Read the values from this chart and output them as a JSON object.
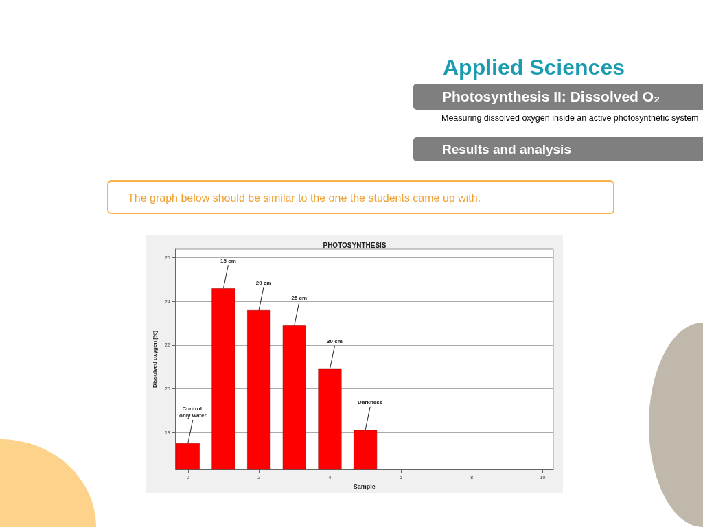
{
  "chart_data": {
    "type": "bar",
    "title": "PHOTOSYNTHESIS",
    "xlabel": "Sample",
    "ylabel": "Dissolved oxygen [%]",
    "x": [
      0,
      1,
      2,
      3,
      4,
      5
    ],
    "values": [
      17.5,
      24.6,
      23.6,
      22.9,
      20.9,
      18.1
    ],
    "color": "#ff0000",
    "xlim": [
      -0.35,
      10.3
    ],
    "xticks": [
      0,
      2,
      4,
      6,
      8,
      10
    ],
    "ylim": [
      16.3,
      26.4
    ],
    "yticks": [
      18,
      20,
      22,
      24,
      26
    ],
    "grid": "y",
    "annotations": [
      "Applied Sciences",
      "Photosynthesis II: Dissolved O₂",
      "Measuring dissolved oxygen inside an active photosynthetic system",
      "Results and analysis",
      "The graph below should be similar to the one the students came up with.",
      {
        "text": "Control only water",
        "x": 0,
        "y": 17.5
      },
      {
        "text": "15 cm",
        "x": 1,
        "y": 24.6
      },
      {
        "text": "20 cm",
        "x": 2,
        "y": 23.6
      },
      {
        "text": "25 cm",
        "x": 3,
        "y": 22.9
      },
      {
        "text": "30 cm",
        "x": 4,
        "y": 20.9
      },
      {
        "text": "Darkness",
        "x": 5,
        "y": 18.1
      }
    ]
  }
}
